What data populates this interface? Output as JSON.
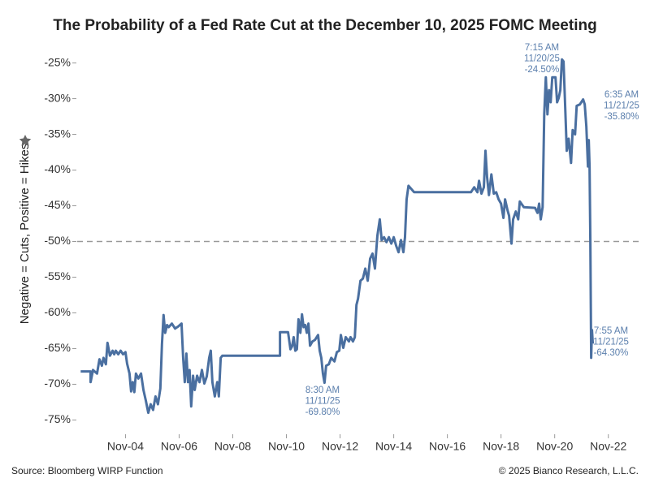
{
  "chart_data": {
    "type": "line",
    "title": "The Probability of a Fed Rate Cut at the December 10, 2025 FOMC Meeting",
    "y_label": "Negative = Cuts, Positive = Hikes",
    "source": "Source: Bloomberg WIRP Function",
    "copyright": "© 2025 Bianco Research, L.L.C.",
    "xlim": [
      2.2,
      23.25
    ],
    "ylim": [
      -77,
      -23
    ],
    "xticks": [
      {
        "value": 4,
        "label": "Nov-04"
      },
      {
        "value": 6,
        "label": "Nov-06"
      },
      {
        "value": 8,
        "label": "Nov-08"
      },
      {
        "value": 10,
        "label": "Nov-10"
      },
      {
        "value": 12,
        "label": "Nov-12"
      },
      {
        "value": 14,
        "label": "Nov-14"
      },
      {
        "value": 16,
        "label": "Nov-16"
      },
      {
        "value": 18,
        "label": "Nov-18"
      },
      {
        "value": 20,
        "label": "Nov-20"
      },
      {
        "value": 22,
        "label": "Nov-22"
      }
    ],
    "yticks": [
      {
        "value": -25,
        "label": "-25%"
      },
      {
        "value": -30,
        "label": "-30%"
      },
      {
        "value": -35,
        "label": "-35%"
      },
      {
        "value": -40,
        "label": "-40%"
      },
      {
        "value": -45,
        "label": "-45%"
      },
      {
        "value": -50,
        "label": "-50%"
      },
      {
        "value": -55,
        "label": "-55%"
      },
      {
        "value": -60,
        "label": "-60%"
      },
      {
        "value": -65,
        "label": "-65%"
      },
      {
        "value": -70,
        "label": "-70%"
      },
      {
        "value": -75,
        "label": "-75%"
      }
    ],
    "reference_line": -50,
    "series": [
      {
        "color": "#4a6fa0",
        "x": [
          2.33,
          2.7,
          2.7,
          2.79,
          2.94,
          3.03,
          3.12,
          3.18,
          3.27,
          3.33,
          3.42,
          3.52,
          3.58,
          3.64,
          3.73,
          3.82,
          3.91,
          4.0,
          4.06,
          4.15,
          4.21,
          4.27,
          4.33,
          4.39,
          4.48,
          4.58,
          4.67,
          4.76,
          4.85,
          4.94,
          5.03,
          5.12,
          5.21,
          5.3,
          5.36,
          5.42,
          5.48,
          5.55,
          5.61,
          5.73,
          5.85,
          5.97,
          6.09,
          6.15,
          6.21,
          6.27,
          6.33,
          6.39,
          6.45,
          6.52,
          6.58,
          6.67,
          6.76,
          6.85,
          6.94,
          7.03,
          7.12,
          7.18,
          7.24,
          7.33,
          7.42,
          7.48,
          7.55,
          7.61,
          9.76,
          9.76,
          10.06,
          10.15,
          10.21,
          10.27,
          10.33,
          10.39,
          10.45,
          10.52,
          10.58,
          10.64,
          10.7,
          10.76,
          10.82,
          10.88,
          10.97,
          11.06,
          11.18,
          11.24,
          11.3,
          11.36,
          11.42,
          11.48,
          11.58,
          11.67,
          11.79,
          11.88,
          11.97,
          12.03,
          12.12,
          12.21,
          12.33,
          12.39,
          12.48,
          12.55,
          12.61,
          12.67,
          12.76,
          12.85,
          12.94,
          13.03,
          13.12,
          13.21,
          13.3,
          13.39,
          13.48,
          13.55,
          13.64,
          13.73,
          13.82,
          13.91,
          14.0,
          14.09,
          14.18,
          14.27,
          14.36,
          14.42,
          14.48,
          14.55,
          14.76,
          16.88,
          17.0,
          17.12,
          17.18,
          17.27,
          17.36,
          17.42,
          17.48,
          17.55,
          17.64,
          17.73,
          17.82,
          17.91,
          18.0,
          18.09,
          18.15,
          18.24,
          18.3,
          18.39,
          18.45,
          18.55,
          18.64,
          18.7,
          18.85,
          19.27,
          19.36,
          19.42,
          19.48,
          19.55,
          19.61,
          19.67,
          19.73,
          19.79,
          19.85,
          19.91,
          20.03,
          20.09,
          20.15,
          20.21,
          20.27,
          20.33,
          20.39,
          20.45,
          20.52,
          20.61,
          20.67,
          20.76,
          20.82,
          20.94,
          21.06,
          21.12,
          21.18,
          21.24,
          21.27,
          21.3,
          21.33,
          21.36,
          21.39,
          21.42
        ],
        "values": [
          -68.2,
          -68.2,
          -69.7,
          -68.0,
          -68.5,
          -66.5,
          -67.4,
          -66.3,
          -67.2,
          -64.2,
          -66.0,
          -65.3,
          -65.8,
          -65.3,
          -65.8,
          -65.3,
          -65.8,
          -65.5,
          -67.1,
          -68.5,
          -71.0,
          -69.7,
          -71.1,
          -68.5,
          -69.2,
          -68.5,
          -70.8,
          -72.3,
          -74.0,
          -72.8,
          -73.6,
          -71.7,
          -72.8,
          -70.6,
          -64.4,
          -60.3,
          -62.8,
          -61.7,
          -62.0,
          -61.5,
          -62.2,
          -61.9,
          -61.5,
          -66.3,
          -69.7,
          -65.7,
          -69.7,
          -68.0,
          -73.1,
          -68.8,
          -70.8,
          -68.8,
          -69.7,
          -68.0,
          -69.9,
          -68.9,
          -66.3,
          -65.3,
          -69.7,
          -71.7,
          -69.7,
          -71.7,
          -66.3,
          -66.0,
          -66.0,
          -62.7,
          -62.7,
          -65.1,
          -64.7,
          -63.4,
          -65.3,
          -65.1,
          -60.9,
          -62.8,
          -60.2,
          -62.0,
          -61.7,
          -62.8,
          -61.5,
          -64.6,
          -64.0,
          -63.8,
          -63.1,
          -65.3,
          -66.3,
          -68.5,
          -69.8,
          -67.4,
          -67.2,
          -66.3,
          -66.8,
          -65.5,
          -65.3,
          -63.1,
          -64.9,
          -63.4,
          -64.0,
          -63.4,
          -64.0,
          -63.4,
          -58.9,
          -58.0,
          -55.5,
          -55.2,
          -53.8,
          -55.5,
          -52.4,
          -51.7,
          -53.8,
          -49.2,
          -46.9,
          -49.8,
          -49.4,
          -50.1,
          -49.4,
          -50.3,
          -49.4,
          -50.6,
          -51.5,
          -49.8,
          -51.5,
          -49.4,
          -44.1,
          -42.2,
          -43.1,
          -43.1,
          -42.4,
          -43.1,
          -41.5,
          -43.3,
          -42.4,
          -37.3,
          -41.0,
          -43.5,
          -40.6,
          -43.3,
          -43.1,
          -44.1,
          -44.7,
          -46.7,
          -44.1,
          -45.6,
          -46.4,
          -50.3,
          -46.9,
          -45.8,
          -46.9,
          -44.4,
          -45.2,
          -45.3,
          -46.0,
          -44.7,
          -46.9,
          -45.2,
          -32.2,
          -27.0,
          -32.2,
          -28.8,
          -30.5,
          -27.0,
          -27.0,
          -30.5,
          -29.9,
          -28.8,
          -24.5,
          -24.8,
          -31.0,
          -37.3,
          -35.6,
          -39.0,
          -34.4,
          -35.0,
          -31.0,
          -30.8,
          -30.1,
          -30.8,
          -33.9,
          -39.5,
          -35.8,
          -39.5,
          -50.3,
          -66.3,
          -62.4,
          -64.3
        ]
      }
    ],
    "annotations": [
      {
        "lines": [
          "7:15 AM",
          "11/20/25",
          "-24.50%"
        ]
      },
      {
        "lines": [
          "6:35 AM",
          "11/21/25",
          "-35.80%"
        ]
      },
      {
        "lines": [
          "7:55 AM",
          "11/21/25",
          "-64.30%"
        ]
      },
      {
        "lines": [
          "8:30 AM",
          "11/11/25",
          "-69.80%"
        ]
      }
    ]
  }
}
